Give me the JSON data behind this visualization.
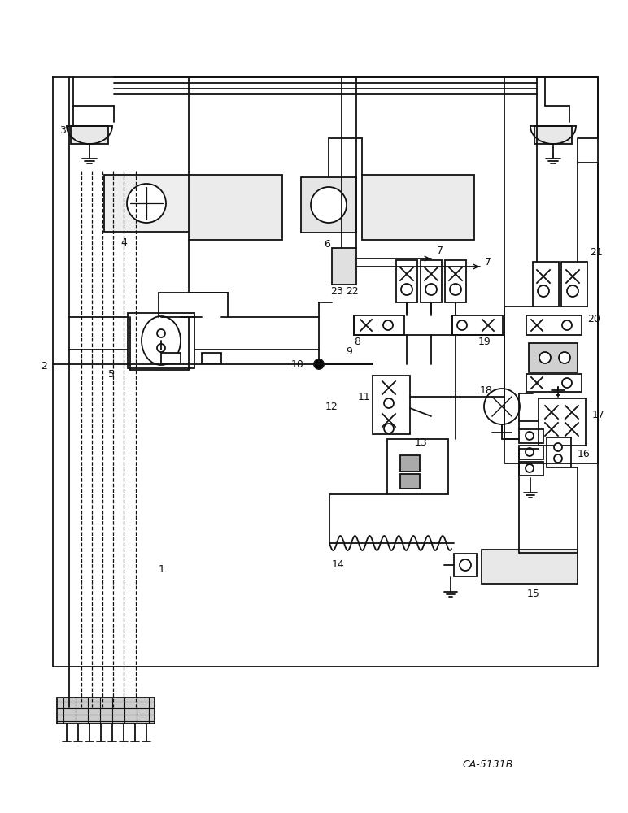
{
  "bg_color": "#ffffff",
  "line_color": "#111111",
  "diagram_label": "CA-5131B",
  "fig_width": 7.72,
  "fig_height": 10.0,
  "dpi": 100
}
